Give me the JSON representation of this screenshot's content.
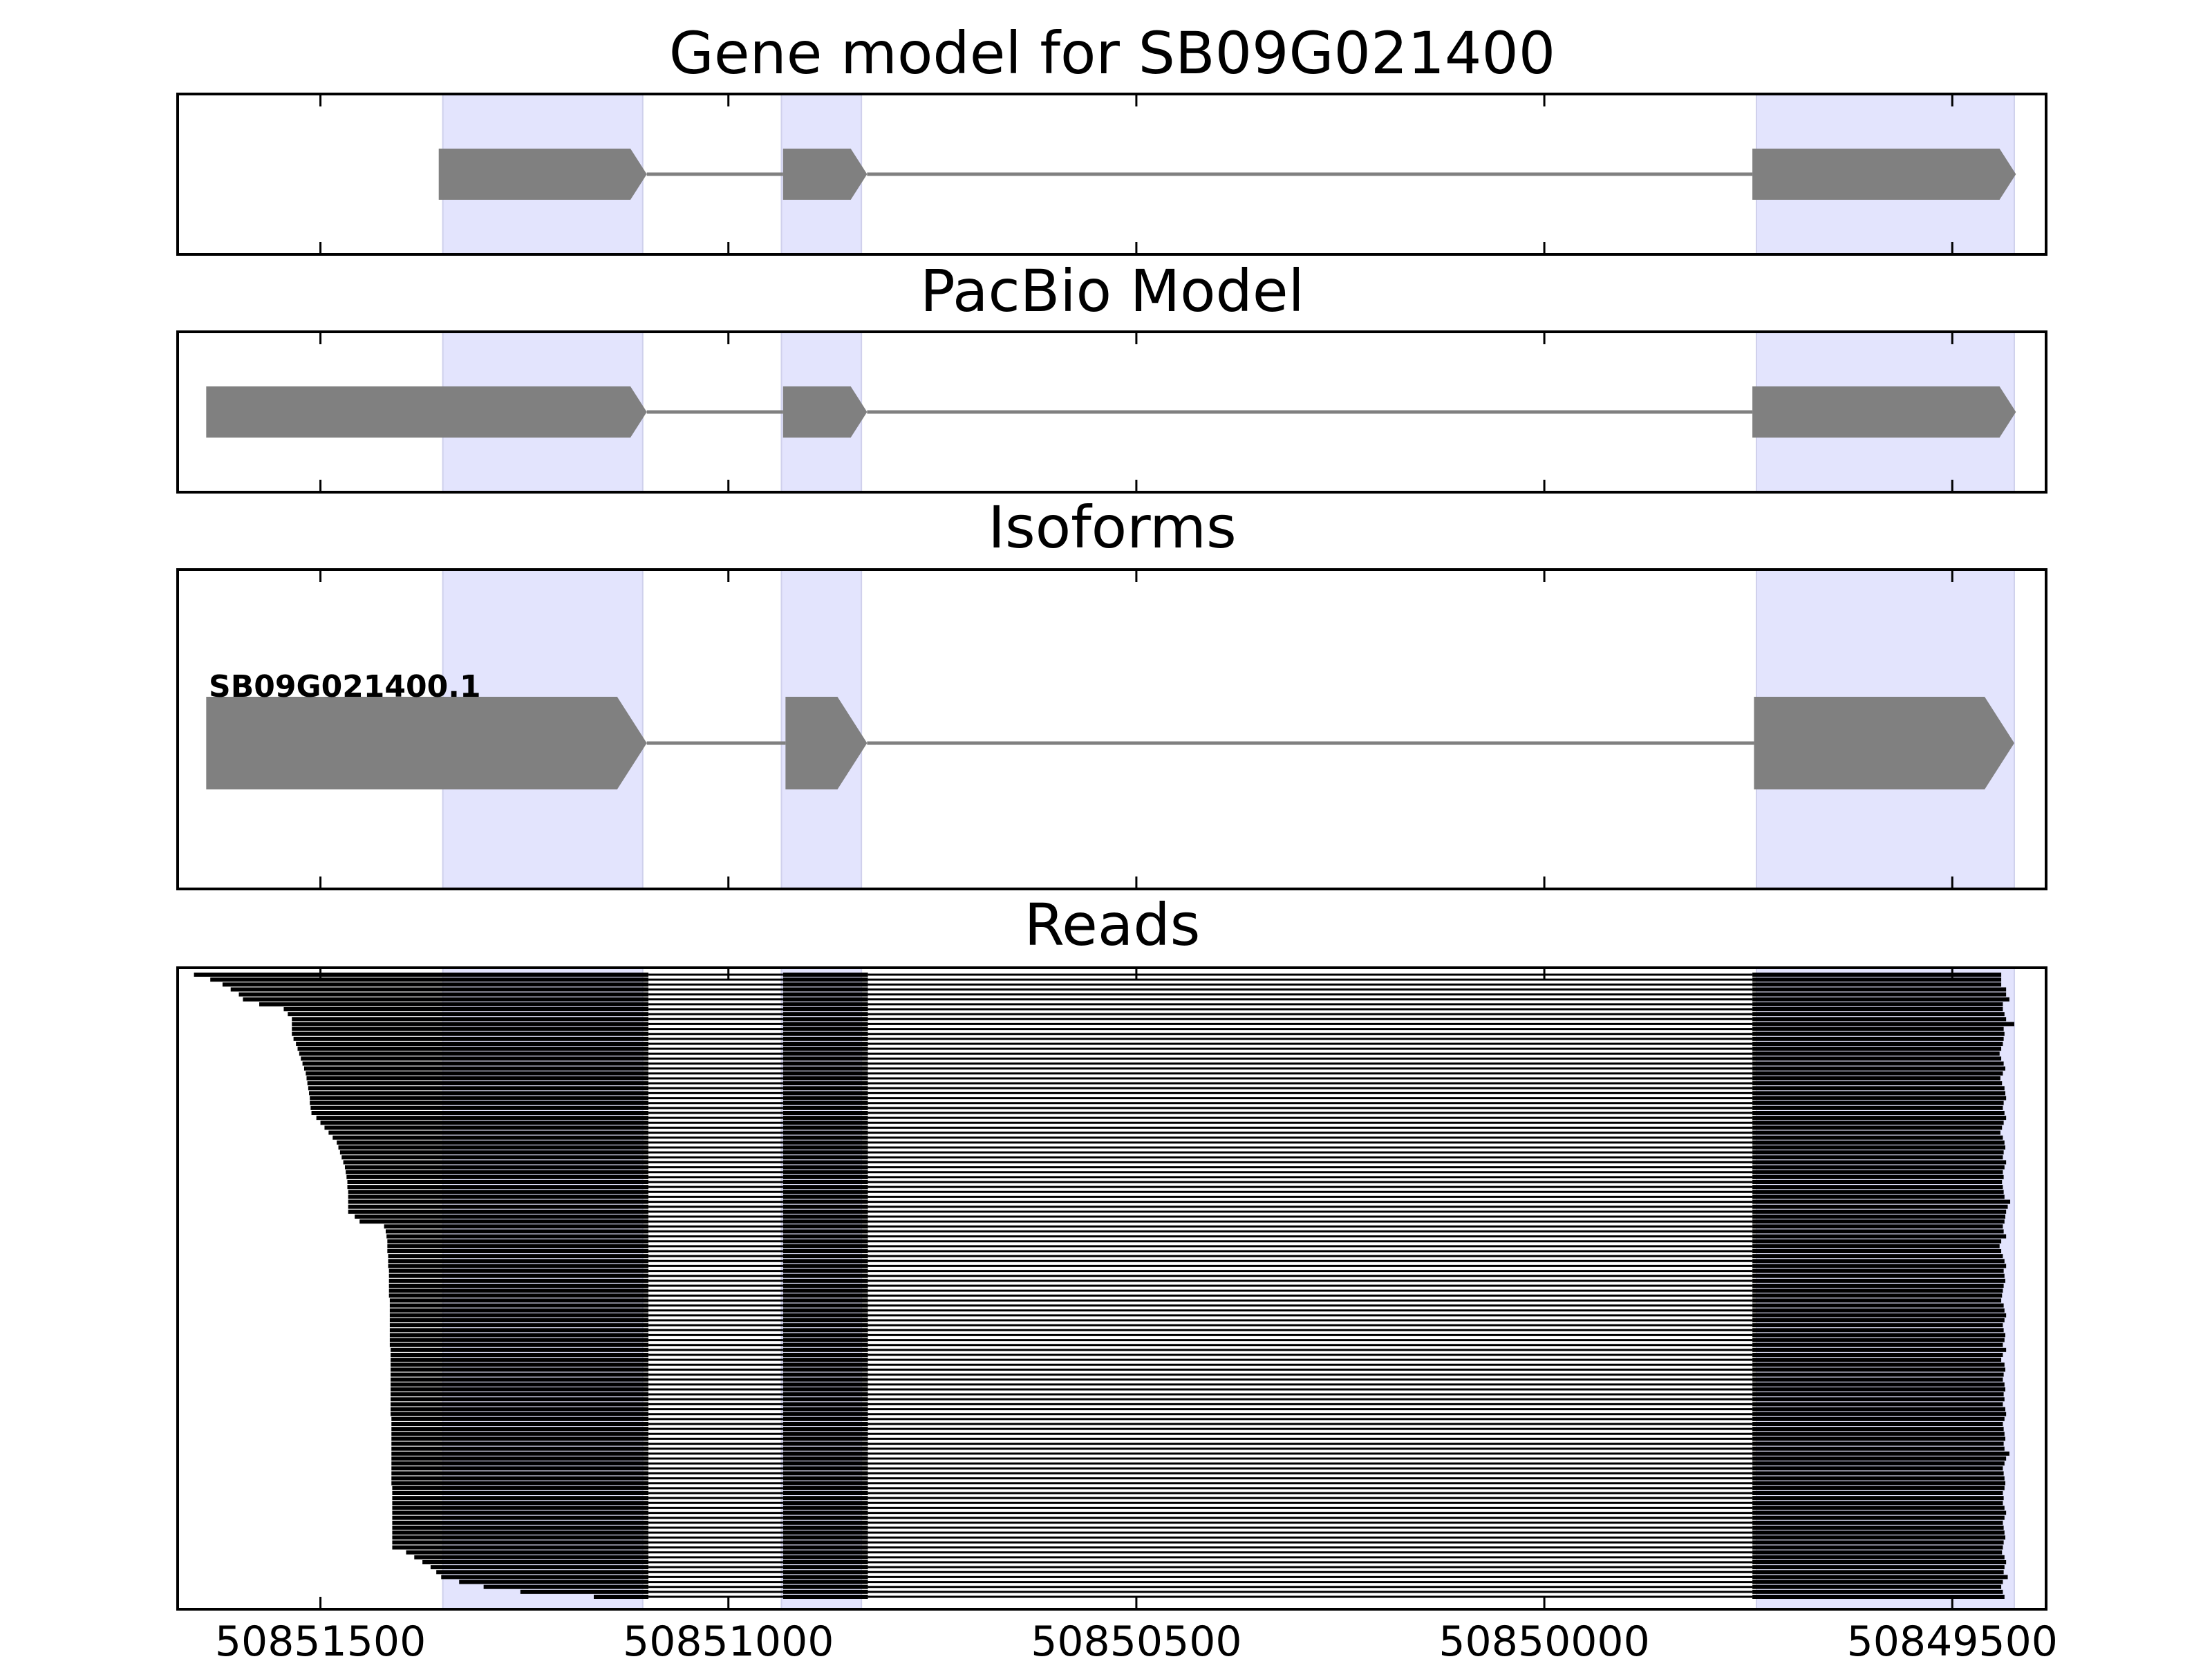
{
  "panels": [
    {
      "id": "gene",
      "title": "Gene model for SB09G021400"
    },
    {
      "id": "pacbio",
      "title": "PacBio Model"
    },
    {
      "id": "isoforms",
      "title": "Isoforms",
      "isoform_label": "SB09G021400.1"
    },
    {
      "id": "reads",
      "title": "Reads"
    }
  ],
  "x_axis": {
    "ticks": [
      "50851500",
      "50851000",
      "50850500",
      "50850000",
      "50849500"
    ]
  },
  "chart_data": {
    "type": "gene-structure",
    "xlim": [
      50851675,
      50849385
    ],
    "x_ticks": [
      50851500,
      50851000,
      50850500,
      50850000,
      50849500
    ],
    "highlight_regions": [
      [
        50851350,
        50851105
      ],
      [
        50850935,
        50850837
      ],
      [
        50849740,
        50849424
      ]
    ],
    "gene_model": {
      "exons": [
        [
          50851355,
          50851100
        ],
        [
          50850933,
          50850830
        ],
        [
          50849745,
          50849422
        ]
      ]
    },
    "pacbio_model": {
      "exons": [
        [
          50851640,
          50851100
        ],
        [
          50850933,
          50850830
        ],
        [
          50849745,
          50849422
        ]
      ]
    },
    "isoforms": [
      {
        "name": "SB09G021400.1",
        "exons": [
          [
            50851640,
            50851100
          ],
          [
            50850930,
            50850830
          ],
          [
            50849743,
            50849424
          ]
        ]
      }
    ],
    "reads": {
      "count": 127,
      "exon2": [
        50850933,
        50850829
      ],
      "exon3_start": 50849745,
      "exon1_end": 50851098,
      "starts": [
        50851655,
        50851635,
        50851620,
        50851610,
        50851600,
        50851595,
        50851575,
        50851545,
        50851540,
        50851535,
        50851535,
        50851535,
        50851535,
        50851533,
        50851530,
        50851528,
        50851526,
        50851524,
        50851522,
        50851520,
        50851518,
        50851517,
        50851516,
        50851515,
        50851514,
        50851513,
        50851513,
        50851512,
        50851511,
        50851505,
        50851500,
        50851495,
        50851490,
        50851485,
        50851480,
        50851478,
        50851476,
        50851474,
        50851472,
        50851470,
        50851469,
        50851468,
        50851467,
        50851467,
        50851466,
        50851466,
        50851466,
        50851466,
        50851466,
        50851458,
        50851452,
        50851422,
        50851420,
        50851419,
        50851418,
        50851418,
        50851418,
        50851417,
        50851417,
        50851417,
        50851416,
        50851416,
        50851416,
        50851416,
        50851416,
        50851416,
        50851415,
        50851415,
        50851415,
        50851415,
        50851415,
        50851415,
        50851415,
        50851415,
        50851415,
        50851415,
        50851414,
        50851414,
        50851414,
        50851414,
        50851414,
        50851414,
        50851414,
        50851414,
        50851414,
        50851414,
        50851414,
        50851414,
        50851414,
        50851414,
        50851413,
        50851413,
        50851413,
        50851413,
        50851413,
        50851413,
        50851413,
        50851413,
        50851413,
        50851413,
        50851413,
        50851413,
        50851413,
        50851413,
        50851412,
        50851412,
        50851412,
        50851412,
        50851412,
        50851412,
        50851412,
        50851412,
        50851412,
        50851412,
        50851412,
        50851412,
        50851412,
        50851395,
        50851385,
        50851375,
        50851365,
        50851358,
        50851352,
        50851330,
        50851300,
        50851255,
        50851165
      ],
      "ends": [
        50849440,
        50849440,
        50849440,
        50849434,
        50849434,
        50849430,
        50849438,
        50849438,
        50849436,
        50849434,
        50849424,
        50849437,
        50849436,
        50849437,
        50849438,
        50849440,
        50849442,
        50849440,
        50849437,
        50849435,
        50849438,
        50849441,
        50849439,
        50849436,
        50849435,
        50849434,
        50849437,
        50849438,
        50849436,
        50849434,
        50849437,
        50849439,
        50849441,
        50849438,
        50849436,
        50849435,
        50849437,
        50849438,
        50849434,
        50849436,
        50849438,
        50849437,
        50849439,
        50849438,
        50849437,
        50849436,
        50849429,
        50849432,
        50849434,
        50849435,
        50849436,
        50849438,
        50849437,
        50849434,
        50849440,
        50849442,
        50849440,
        50849438,
        50849436,
        50849434,
        50849437,
        50849436,
        50849435,
        50849437,
        50849438,
        50849439,
        50849440,
        50849437,
        50849436,
        50849434,
        50849436,
        50849438,
        50849437,
        50849435,
        50849436,
        50849438,
        50849434,
        50849438,
        50849440,
        50849436,
        50849435,
        50849437,
        50849438,
        50849436,
        50849435,
        50849437,
        50849436,
        50849438,
        50849435,
        50849434,
        50849436,
        50849438,
        50849437,
        50849436,
        50849435,
        50849437,
        50849436,
        50849430,
        50849434,
        50849436,
        50849438,
        50849437,
        50849436,
        50849435,
        50849436,
        50849438,
        50849437,
        50849438,
        50849436,
        50849434,
        50849436,
        50849438,
        50849437,
        50849436,
        50849435,
        50849437,
        50849438,
        50849439,
        50849436,
        50849434,
        50849436,
        50849437,
        50849432,
        50849438,
        50849440,
        50849438,
        50849436
      ]
    }
  },
  "colors": {
    "highlight": "#e3e4fd",
    "feature": "#808080",
    "read": "#000000",
    "frame": "#000000"
  }
}
